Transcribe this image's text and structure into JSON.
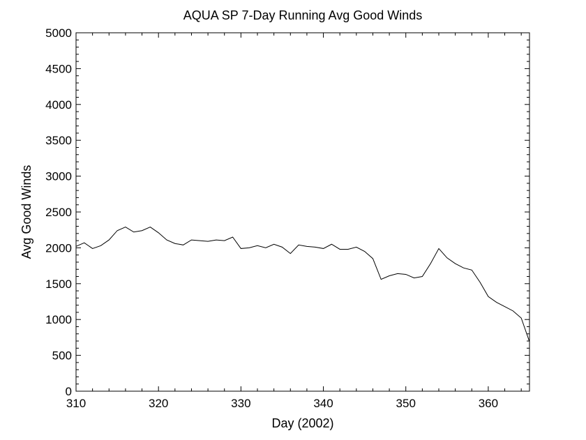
{
  "chart_data": {
    "type": "line",
    "title": "AQUA SP 7-Day Running Avg Good Winds",
    "xlabel": "Day (2002)",
    "ylabel": "Avg Good Winds",
    "xlim": [
      310,
      365
    ],
    "ylim": [
      0,
      5000
    ],
    "x_ticks": [
      310,
      320,
      330,
      340,
      350,
      360
    ],
    "y_ticks": [
      0,
      500,
      1000,
      1500,
      2000,
      2500,
      3000,
      3500,
      4000,
      4500,
      5000
    ],
    "grid": false,
    "line_color": "#000000",
    "series": [
      {
        "x": [
          310,
          311,
          312,
          313,
          314,
          315,
          316,
          317,
          318,
          319,
          320,
          321,
          322,
          323,
          324,
          325,
          326,
          327,
          328,
          329,
          330,
          331,
          332,
          333,
          334,
          335,
          336,
          337,
          338,
          339,
          340,
          341,
          342,
          343,
          344,
          345,
          346,
          347,
          348,
          349,
          350,
          351,
          352,
          353,
          354,
          355,
          356,
          357,
          358,
          359,
          360,
          361,
          362,
          363,
          364,
          365
        ],
        "y": [
          2020,
          2070,
          1990,
          2030,
          2110,
          2240,
          2290,
          2220,
          2240,
          2290,
          2210,
          2110,
          2060,
          2040,
          2110,
          2100,
          2090,
          2110,
          2100,
          2150,
          1990,
          2000,
          2030,
          2000,
          2050,
          2010,
          1920,
          2040,
          2020,
          2010,
          1990,
          2050,
          1980,
          1980,
          2010,
          1950,
          1850,
          1560,
          1610,
          1640,
          1630,
          1580,
          1600,
          1780,
          1990,
          1860,
          1780,
          1720,
          1690,
          1520,
          1320,
          1240,
          1180,
          1120,
          1020,
          690
        ]
      }
    ]
  }
}
